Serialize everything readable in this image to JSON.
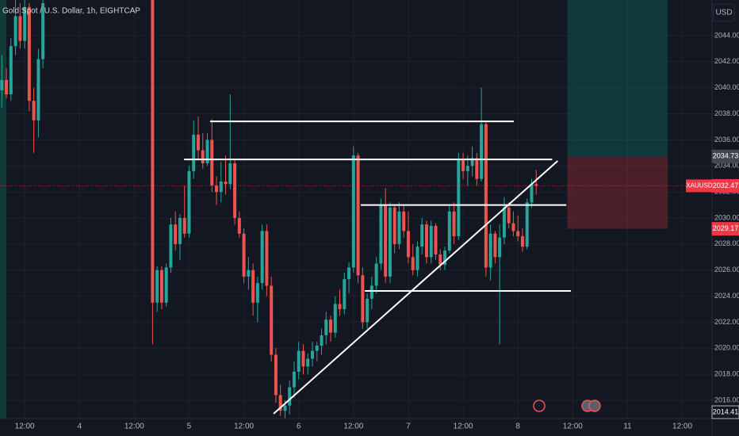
{
  "chart_data": {
    "type": "candlestick",
    "title": "Gold Spot / U.S. Dollar, 1h, EIGHTCAP",
    "currency": "USD",
    "up_color": "#26a69a",
    "down_color": "#ef5350",
    "x": [
      -17,
      -16,
      -15,
      -14,
      -13,
      -12,
      -11,
      -10,
      -9,
      -8,
      16,
      17,
      18,
      19,
      20,
      21,
      22,
      23,
      24,
      25,
      26,
      27,
      28,
      29,
      30,
      31,
      32,
      33,
      34,
      35,
      36,
      37,
      38,
      39,
      40,
      41,
      42,
      43,
      44,
      45,
      46,
      47,
      48,
      49,
      50,
      51,
      52,
      53,
      54,
      55,
      56,
      57,
      58,
      59,
      60,
      61,
      62,
      63,
      64,
      65,
      66,
      67,
      68,
      69,
      70,
      71,
      72,
      73,
      74,
      75,
      76,
      77,
      78,
      79,
      80,
      81,
      82,
      83,
      84,
      85,
      86,
      87,
      88,
      89,
      90,
      91,
      92,
      93,
      94,
      95,
      96,
      97,
      98,
      99,
      100
    ],
    "open": [
      2039.8,
      2040.6,
      2039.5,
      2043.2,
      2045.5,
      2043.6,
      2046.2,
      2039.0,
      2037.5,
      2042.2,
      2047,
      2023.5,
      2026.0,
      2023.5,
      2026.2,
      2029.5,
      2028.0,
      2030.0,
      2028.8,
      2033.6,
      2036.4,
      2035.2,
      2034.2,
      2036.0,
      2032.5,
      2032.0,
      2032.8,
      2032.6,
      2034.2,
      2030.0,
      2028.8,
      2025.5,
      2026.0,
      2023.5,
      2025.0,
      2029.0,
      2024.8,
      2019.5,
      2016.4,
      2015.2,
      2015.6,
      2017.0,
      2018.2,
      2019.8,
      2018.6,
      2019.2,
      2019.8,
      2020.2,
      2021.0,
      2022.2,
      2021.2,
      2023.4,
      2023.0,
      2025.3,
      2026.2,
      2034.8,
      2025.6,
      2022.0,
      2023.8,
      2024.8,
      2026.5,
      2031.0,
      2025.5,
      2030.8,
      2028.0,
      2030.5,
      2029.0,
      2027.0,
      2026.0,
      2027.8,
      2029.5,
      2027.0,
      2029.4,
      2027.2,
      2026.4,
      2027.5,
      2030.5,
      2028.6,
      2034.5,
      2033.6,
      2034.0,
      2034.6,
      2033.0,
      2037.2,
      2026.2,
      2028.8,
      2027.0,
      2028.5,
      2030.8,
      2029.6,
      2029.0,
      2028.6,
      2027.8,
      2031.2,
      2032.6
    ],
    "high": [
      2042.5,
      2041.5,
      2043.8,
      2047,
      2046.5,
      2047,
      2046.5,
      2040,
      2043,
      2047,
      2048,
      2026.3,
      2026.3,
      2026.5,
      2030,
      2030.5,
      2030.3,
      2032.5,
      2034,
      2037.5,
      2037.8,
      2036.5,
      2036.5,
      2037.6,
      2033.2,
      2034.3,
      2034.8,
      2039.5,
      2034.6,
      2030.5,
      2029.2,
      2027,
      2026.5,
      2025.5,
      2029.5,
      2029.5,
      2025.5,
      2020,
      2017.2,
      2016.0,
      2017.5,
      2019,
      2020.5,
      2020.3,
      2019.6,
      2020.5,
      2020.5,
      2021.5,
      2022.8,
      2022.5,
      2024.0,
      2024.5,
      2025.8,
      2026.6,
      2035.5,
      2035,
      2026.2,
      2024.2,
      2025.5,
      2027,
      2031.5,
      2032.3,
      2031.2,
      2031,
      2031.2,
      2031,
      2030.5,
      2028,
      2028.2,
      2030.0,
      2029.8,
      2029.8,
      2029.6,
      2027.6,
      2027.8,
      2031.0,
      2031.2,
      2035.0,
      2035.0,
      2034.8,
      2035.5,
      2035.0,
      2040.0,
      2037.5,
      2029.5,
      2029.0,
      2029.5,
      2031.6,
      2031.2,
      2030.5,
      2030.2,
      2029.2,
      2031.5,
      2033.0,
      2033.7
    ],
    "low": [
      2038.5,
      2039.2,
      2039.0,
      2042.5,
      2043.0,
      2043,
      2038.2,
      2035.0,
      2036.2,
      2041.5,
      2020.3,
      2022.8,
      2023.0,
      2023.2,
      2025.8,
      2027.5,
      2026.8,
      2028.5,
      2028.5,
      2033,
      2034.5,
      2033.8,
      2034,
      2032,
      2031.0,
      2031.2,
      2031.8,
      2032.2,
      2029.5,
      2028.5,
      2025.0,
      2024.5,
      2022.5,
      2022.0,
      2024.5,
      2024,
      2019.0,
      2015.8,
      2014.8,
      2014.6,
      2014.9,
      2016.2,
      2017.6,
      2018.0,
      2018.0,
      2018.6,
      2019.0,
      2019.5,
      2020.3,
      2020.5,
      2020.8,
      2022.5,
      2022.6,
      2024.2,
      2025.8,
      2025.0,
      2021.5,
      2021.5,
      2023.0,
      2024.2,
      2026,
      2025.0,
      2025.0,
      2027.3,
      2027.6,
      2028.5,
      2026.5,
      2025.6,
      2025.5,
      2027.2,
      2026.5,
      2026.5,
      2026.8,
      2026.0,
      2026.0,
      2027.3,
      2028.0,
      2028.3,
      2033.0,
      2032.5,
      2033.2,
      2032.5,
      2032.8,
      2025.5,
      2025.2,
      2026.5,
      2020.3,
      2028.0,
      2029.2,
      2028.6,
      2028.2,
      2027.4,
      2027.6,
      2030.8,
      2031.8
    ],
    "close": [
      2040.6,
      2039.5,
      2043.2,
      2045.5,
      2043.6,
      2046.2,
      2039.0,
      2037.5,
      2042.2,
      2046.5,
      2023.5,
      2026.0,
      2023.5,
      2026.2,
      2029.5,
      2028.0,
      2030.0,
      2028.8,
      2033.6,
      2036.4,
      2035.2,
      2034.2,
      2036.0,
      2032.5,
      2032.0,
      2032.8,
      2032.6,
      2034.2,
      2030.0,
      2028.8,
      2025.5,
      2026.0,
      2023.5,
      2025.0,
      2029.0,
      2024.8,
      2019.5,
      2016.4,
      2015.2,
      2015.6,
      2017.0,
      2018.2,
      2019.8,
      2018.6,
      2019.2,
      2019.8,
      2020.2,
      2021.0,
      2022.2,
      2021.2,
      2023.4,
      2023.0,
      2025.3,
      2026.2,
      2034.8,
      2025.6,
      2022.0,
      2023.8,
      2024.8,
      2026.5,
      2031.0,
      2025.5,
      2030.8,
      2028.0,
      2030.5,
      2029.0,
      2027.0,
      2026.0,
      2027.8,
      2029.5,
      2027.0,
      2029.4,
      2027.2,
      2026.4,
      2027.5,
      2030.5,
      2028.6,
      2034.5,
      2033.6,
      2034.0,
      2034.6,
      2033.0,
      2037.2,
      2026.2,
      2028.8,
      2027.0,
      2028.5,
      2030.8,
      2029.6,
      2029.0,
      2028.6,
      2027.8,
      2031.2,
      2032.6,
      2032.47
    ],
    "xlim": [
      -17.4,
      138.5
    ],
    "ylim": [
      2014.6,
      2046.74
    ],
    "xticks": [
      {
        "value": -12,
        "label": "12:00"
      },
      {
        "value": 0,
        "label": "4"
      },
      {
        "value": 12,
        "label": "12:00"
      },
      {
        "value": 24,
        "label": "5"
      },
      {
        "value": 36,
        "label": "12:00"
      },
      {
        "value": 48,
        "label": "6"
      },
      {
        "value": 60,
        "label": "12:00"
      },
      {
        "value": 72,
        "label": "7"
      },
      {
        "value": 84,
        "label": "12:00"
      },
      {
        "value": 96,
        "label": "8"
      },
      {
        "value": 108,
        "label": "12:00"
      },
      {
        "value": 120,
        "label": "11"
      },
      {
        "value": 132,
        "label": "12:00"
      }
    ],
    "yticks": [
      {
        "value": 2016,
        "label": "2016.00"
      },
      {
        "value": 2018,
        "label": "2018.00"
      },
      {
        "value": 2020,
        "label": "2020.00"
      },
      {
        "value": 2022,
        "label": "2022.00"
      },
      {
        "value": 2024,
        "label": "2024.00"
      },
      {
        "value": 2026,
        "label": "2026.00"
      },
      {
        "value": 2028,
        "label": "2028.00"
      },
      {
        "value": 2030,
        "label": "2030.00"
      },
      {
        "value": 2032,
        "label": "2032.00"
      },
      {
        "value": 2034,
        "label": "2034.00"
      },
      {
        "value": 2036,
        "label": "2036.00"
      },
      {
        "value": 2038,
        "label": "2038.00"
      },
      {
        "value": 2040,
        "label": "2040.00"
      },
      {
        "value": 2042,
        "label": "2042.00"
      },
      {
        "value": 2044,
        "label": "2044.00"
      }
    ],
    "grid": true,
    "position": {
      "x": [
        106.8,
        128.8
      ],
      "entry": 2034.73,
      "stop": 2029.17
    },
    "lines": [
      {
        "x": [
          28.6,
          95.1
        ],
        "y": [
          2037.42,
          2037.42
        ]
      },
      {
        "x": [
          22.9,
          103.5
        ],
        "y": [
          2034.5,
          2034.5
        ]
      },
      {
        "x": [
          61.6,
          106.6
        ],
        "y": [
          2031.0,
          2031.0
        ]
      },
      {
        "x": [
          62.5,
          107.6
        ],
        "y": [
          2024.4,
          2024.4
        ]
      },
      {
        "x": [
          42.5,
          104.7
        ],
        "y": [
          2014.97,
          2034.38
        ]
      }
    ],
    "last_price": 2032.47,
    "price_tags": [
      {
        "value": 2034.73,
        "label": "2034.73",
        "color": "#434651"
      },
      {
        "value": 2032.47,
        "label": "2032.47",
        "color": "#f23645",
        "symbol": "XAUUSD"
      },
      {
        "value": 2029.17,
        "label": "2029.17",
        "color": "#f23645"
      },
      {
        "value": 2014.41,
        "label": "2014.41",
        "color": "#131722"
      }
    ]
  }
}
